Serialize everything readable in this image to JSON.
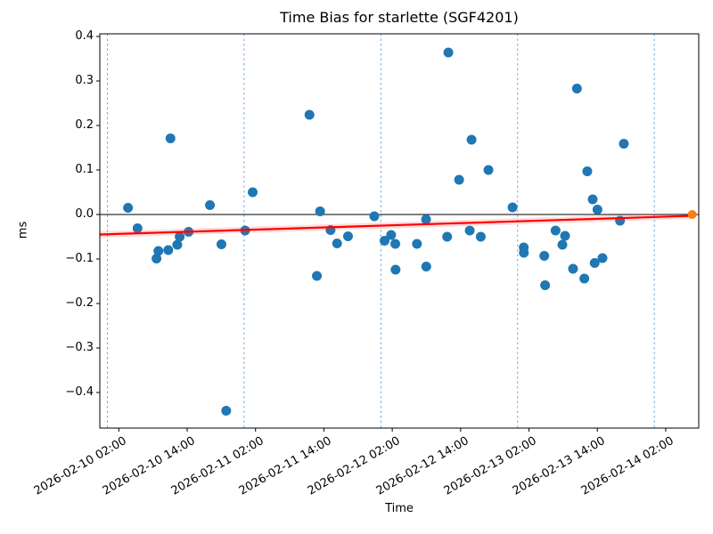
{
  "figure": {
    "title": "Time Bias for starlette (SGF4201)",
    "xlabel": "Time",
    "ylabel": "ms"
  },
  "chart_data": {
    "type": "scatter",
    "title": "Time Bias for starlette (SGF4201)",
    "xlabel": "Time",
    "ylabel": "ms",
    "x_range": [
      "2026-02-09 22:40",
      "2026-02-14 07:48"
    ],
    "ylim": [
      -0.48,
      0.406
    ],
    "y_ticks": [
      {
        "v": 0.4,
        "label": "0.4"
      },
      {
        "v": 0.3,
        "label": "0.3"
      },
      {
        "v": 0.2,
        "label": "0.2"
      },
      {
        "v": 0.1,
        "label": "0.1"
      },
      {
        "v": 0.0,
        "label": "0.0"
      },
      {
        "v": -0.1,
        "label": "−0.1"
      },
      {
        "v": -0.2,
        "label": "−0.2"
      },
      {
        "v": -0.3,
        "label": "−0.3"
      },
      {
        "v": -0.4,
        "label": "−0.4"
      }
    ],
    "x_tick_labels": [
      "2026-02-10 02:00",
      "2026-02-10 14:00",
      "2026-02-11 02:00",
      "2026-02-11 14:00",
      "2026-02-12 02:00",
      "2026-02-12 14:00",
      "2026-02-13 02:00",
      "2026-02-13 14:00",
      "2026-02-14 02:00"
    ],
    "day_gridlines": [
      "2026-02-10 00:00",
      "2026-02-11 00:00",
      "2026-02-12 00:00",
      "2026-02-13 00:00",
      "2026-02-14 00:00"
    ],
    "zero_line_ms": 0.0,
    "grid": "vertical-day-lines-only",
    "legend": "none",
    "points": [
      {
        "t": "2026-02-10 03:37",
        "ms": 0.015
      },
      {
        "t": "2026-02-10 05:17",
        "ms": -0.031
      },
      {
        "t": "2026-02-10 08:37",
        "ms": -0.099
      },
      {
        "t": "2026-02-10 08:57",
        "ms": -0.082
      },
      {
        "t": "2026-02-10 10:41",
        "ms": -0.08
      },
      {
        "t": "2026-02-10 11:04",
        "ms": 0.171
      },
      {
        "t": "2026-02-10 12:16",
        "ms": -0.068
      },
      {
        "t": "2026-02-10 12:41",
        "ms": -0.05
      },
      {
        "t": "2026-02-10 14:15",
        "ms": -0.039
      },
      {
        "t": "2026-02-10 18:00",
        "ms": 0.021
      },
      {
        "t": "2026-02-10 20:01",
        "ms": -0.067
      },
      {
        "t": "2026-02-10 20:51",
        "ms": -0.441
      },
      {
        "t": "2026-02-11 00:10",
        "ms": -0.036
      },
      {
        "t": "2026-02-11 01:30",
        "ms": 0.05
      },
      {
        "t": "2026-02-11 11:28",
        "ms": 0.224
      },
      {
        "t": "2026-02-11 12:46",
        "ms": -0.138
      },
      {
        "t": "2026-02-11 13:20",
        "ms": 0.007
      },
      {
        "t": "2026-02-11 15:10",
        "ms": -0.035
      },
      {
        "t": "2026-02-11 16:19",
        "ms": -0.065
      },
      {
        "t": "2026-02-11 18:14",
        "ms": -0.049
      },
      {
        "t": "2026-02-11 22:51",
        "ms": -0.004
      },
      {
        "t": "2026-02-12 00:39",
        "ms": -0.059
      },
      {
        "t": "2026-02-12 01:48",
        "ms": -0.046
      },
      {
        "t": "2026-02-12 02:32",
        "ms": -0.066
      },
      {
        "t": "2026-02-12 02:35",
        "ms": -0.124
      },
      {
        "t": "2026-02-12 06:20",
        "ms": -0.066
      },
      {
        "t": "2026-02-12 07:56",
        "ms": -0.011
      },
      {
        "t": "2026-02-12 07:58",
        "ms": -0.117
      },
      {
        "t": "2026-02-12 11:38",
        "ms": -0.05
      },
      {
        "t": "2026-02-12 11:51",
        "ms": 0.364
      },
      {
        "t": "2026-02-12 13:44",
        "ms": 0.078
      },
      {
        "t": "2026-02-12 15:36",
        "ms": -0.036
      },
      {
        "t": "2026-02-12 15:55",
        "ms": 0.168
      },
      {
        "t": "2026-02-12 17:32",
        "ms": -0.05
      },
      {
        "t": "2026-02-12 18:53",
        "ms": 0.1
      },
      {
        "t": "2026-02-12 23:07",
        "ms": 0.016
      },
      {
        "t": "2026-02-13 01:05",
        "ms": -0.074
      },
      {
        "t": "2026-02-13 01:06",
        "ms": -0.086
      },
      {
        "t": "2026-02-13 04:41",
        "ms": -0.093
      },
      {
        "t": "2026-02-13 04:50",
        "ms": -0.159
      },
      {
        "t": "2026-02-13 06:40",
        "ms": -0.036
      },
      {
        "t": "2026-02-13 07:52",
        "ms": -0.068
      },
      {
        "t": "2026-02-13 08:20",
        "ms": -0.048
      },
      {
        "t": "2026-02-13 09:44",
        "ms": -0.122
      },
      {
        "t": "2026-02-13 10:25",
        "ms": 0.283
      },
      {
        "t": "2026-02-13 11:43",
        "ms": -0.144
      },
      {
        "t": "2026-02-13 12:14",
        "ms": 0.097
      },
      {
        "t": "2026-02-13 13:11",
        "ms": 0.034
      },
      {
        "t": "2026-02-13 13:32",
        "ms": -0.109
      },
      {
        "t": "2026-02-13 14:01",
        "ms": 0.011
      },
      {
        "t": "2026-02-13 14:54",
        "ms": -0.098
      },
      {
        "t": "2026-02-13 17:59",
        "ms": -0.014
      },
      {
        "t": "2026-02-13 18:39",
        "ms": 0.159
      }
    ],
    "latest_point": {
      "t": "2026-02-14 06:39",
      "ms": 0.0
    },
    "trend_line": {
      "start": {
        "t": "2026-02-09 22:40",
        "ms": -0.045
      },
      "end": {
        "t": "2026-02-14 06:39",
        "ms": -0.003
      }
    },
    "colors": {
      "points": "#1f77b4",
      "latest": "#ff7f0e",
      "trend": "#ff0000",
      "trend_band": "rgba(255,60,60,0.18)",
      "day_gridline": "#5b9bd5",
      "zero_line": "#000000",
      "spine": "#000000"
    }
  }
}
